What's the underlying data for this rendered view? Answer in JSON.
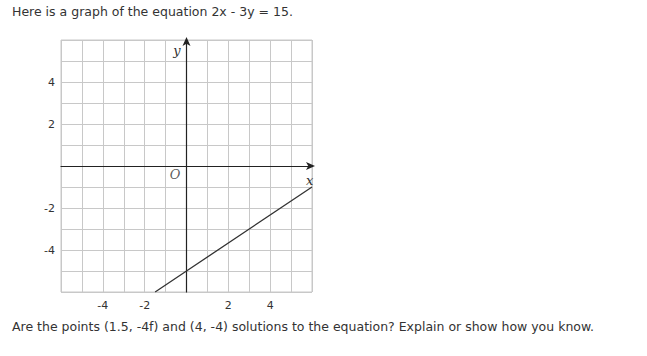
{
  "header": {
    "text": "Here is a graph of the equation 2x - 3y = 15."
  },
  "chart_data": {
    "type": "line",
    "x": [
      -1.5,
      0,
      3,
      6
    ],
    "values": [
      -6,
      -5,
      -3,
      -1
    ],
    "color": "#333333",
    "xlim": [
      -6,
      6
    ],
    "ylim": [
      -6,
      6
    ],
    "xticks": [
      -4,
      -2,
      2,
      4
    ],
    "yticks": [
      -4,
      -2,
      2,
      4
    ],
    "xlabel": "x",
    "ylabel": "y",
    "grid": true,
    "annotations": [
      {
        "text": "O",
        "x": 0,
        "y": 0
      }
    ]
  },
  "question": {
    "text": "Are the points (1.5, -4f) and (4, -4) solutions to the equation? Explain or show how you know."
  }
}
